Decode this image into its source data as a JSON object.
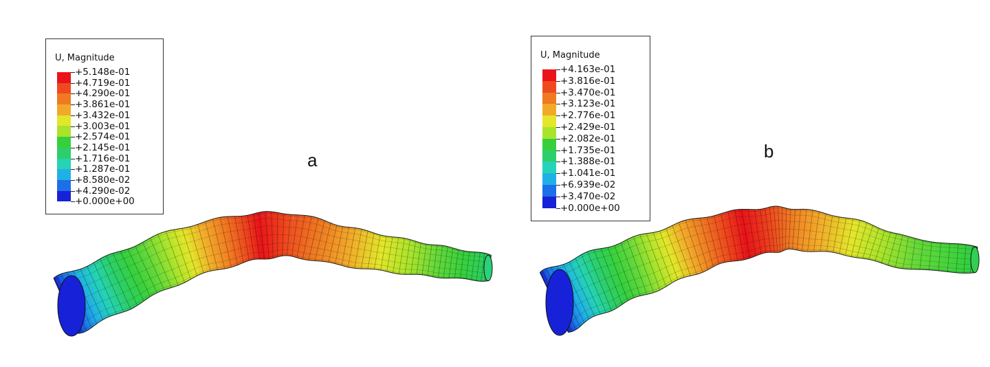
{
  "panels": [
    {
      "id": "a",
      "letter": "a",
      "legend": {
        "title": "U, Magnitude",
        "values": [
          "+5.148e-01",
          "+4.719e-01",
          "+4.290e-01",
          "+3.861e-01",
          "+3.432e-01",
          "+3.003e-01",
          "+2.574e-01",
          "+2.145e-01",
          "+1.716e-01",
          "+1.287e-01",
          "+8.580e-02",
          "+4.290e-02",
          "+0.000e+00"
        ]
      }
    },
    {
      "id": "b",
      "letter": "b",
      "legend": {
        "title": "U, Magnitude",
        "values": [
          "+4.163e-01",
          "+3.816e-01",
          "+3.470e-01",
          "+3.123e-01",
          "+2.776e-01",
          "+2.429e-01",
          "+2.082e-01",
          "+1.735e-01",
          "+1.388e-01",
          "+1.041e-01",
          "+6.939e-02",
          "+3.470e-02",
          "+0.000e+00"
        ]
      }
    }
  ],
  "colormap": [
    "#e8141a",
    "#ef4a1e",
    "#ef7a22",
    "#f2a92a",
    "#e3e62a",
    "#a8e42c",
    "#62d83a",
    "#36d03e",
    "#2ccf6c",
    "#25d3b6",
    "#21b0e6",
    "#1c6fe8",
    "#1722d8"
  ]
}
